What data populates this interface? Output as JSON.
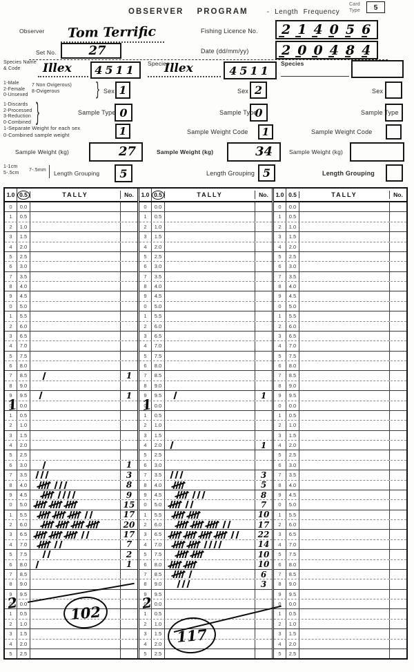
{
  "form": {
    "title": "OBSERVER  PROGRAM",
    "subtitle": "- Length  Frequency",
    "card_type_label_1": "Card",
    "card_type_label_2": "Type",
    "card_type_value": "5",
    "observer_label": "Observer",
    "observer_value": "Tom Terrific",
    "licence_label": "Fishing Licence No.",
    "licence_value": "214056",
    "set_label": "Set No.",
    "set_value": "27",
    "date_label": "Date (dd/mm/yy)",
    "date_value": "200484"
  },
  "labels": {
    "species_name_code_1": "Species Name",
    "species_name_code_2": "& Code",
    "species": "Species",
    "sex": "Sex",
    "sample_type": "Sample Type",
    "sample_weight_code": "Sample Weight Code",
    "sample_weight": "Sample Weight (kg)",
    "length_grouping": "Length Grouping"
  },
  "legends": {
    "sex_codes": [
      "1-Male",
      "2-Female",
      "0-Unsexed"
    ],
    "sex_codes2": [
      "7 Non Ovigerous)",
      "8-Ovigerous"
    ],
    "sample_type_codes": [
      "1-Discards",
      "2-Processed",
      "3-Reduction",
      "0-Combined"
    ],
    "weight_code_codes": [
      "1-Separate Weight for each sex",
      "0-Combined sample weight"
    ],
    "length_grouping_codes": [
      "1-1cm",
      "5-.5cm",
      "7-.5mm"
    ]
  },
  "sections": [
    {
      "species_name": "Illex",
      "species_code": "4511",
      "sex": "1",
      "sample_type": "0",
      "weight_code": "1",
      "sample_weight": "27",
      "length_grouping": "5",
      "total": "102"
    },
    {
      "species_name": "Illex",
      "species_code": "4511",
      "sex": "2",
      "sample_type": "0",
      "weight_code": "1",
      "sample_weight": "34",
      "length_grouping": "5",
      "total": "117"
    },
    {
      "species_name": "",
      "species_code": "",
      "sex": "",
      "sample_type": "",
      "weight_code": "",
      "sample_weight": "",
      "length_grouping": "",
      "total": ""
    }
  ],
  "tally_table": {
    "columns": [
      "1.0",
      "0.5",
      "TALLY",
      "No."
    ],
    "num_rows": 46,
    "sections": [
      {
        "counts": {
          "17": 1,
          "19": 1,
          "26": 1,
          "27": 3,
          "28": 8,
          "29": 9,
          "30": 15,
          "31": 17,
          "32": 20,
          "33": 17,
          "34": 7,
          "35": 2,
          "36": 1
        },
        "decades": {
          "20": "1",
          "40": "2"
        },
        "total": "102"
      },
      {
        "counts": {
          "19": 1,
          "24": 1,
          "27": 3,
          "28": 5,
          "29": 8,
          "30": 7,
          "31": 10,
          "32": 17,
          "33": 22,
          "34": 14,
          "35": 10,
          "36": 10,
          "37": 6,
          "38": 3
        },
        "decades": {
          "20": "1",
          "40": "2"
        },
        "total": "117"
      },
      {
        "counts": {},
        "decades": {},
        "total": ""
      }
    ]
  }
}
